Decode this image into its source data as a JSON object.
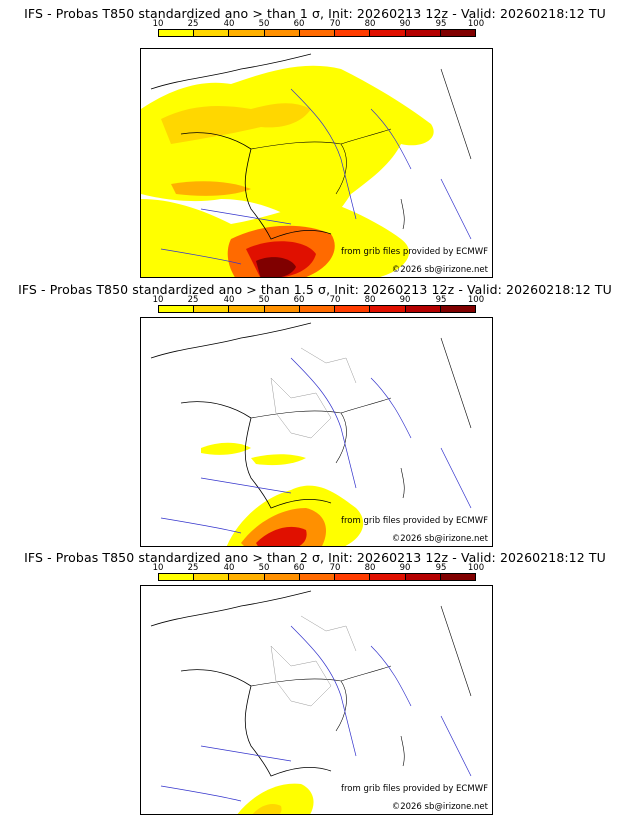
{
  "colorbar": {
    "ticks": [
      "10",
      "25",
      "40",
      "50",
      "60",
      "70",
      "80",
      "90",
      "95",
      "100"
    ],
    "colors": [
      "#ffff00",
      "#ffd700",
      "#ffb000",
      "#ff9000",
      "#ff6a00",
      "#ff3c00",
      "#e01000",
      "#b40000",
      "#800000"
    ]
  },
  "panels": [
    {
      "title": "IFS - Probas T850  standardized ano > than 1 σ, Init: 20260213 12z - Valid: 20260218:12 TU",
      "credit_source": "from grib files provided by ECMWF",
      "credit_copyright": "©2026 sb@irizone.net"
    },
    {
      "title": "IFS - Probas T850  standardized ano > than 1.5 σ, Init: 20260213 12z - Valid: 20260218:12 TU",
      "credit_source": "from grib files provided by ECMWF",
      "credit_copyright": "©2026 sb@irizone.net"
    },
    {
      "title": "IFS - Probas T850  standardized ano > than 2 σ, Init: 20260213 12z - Valid: 20260218:12 TU",
      "credit_source": "from grib files provided by ECMWF",
      "credit_copyright": "©2026 sb@irizone.net"
    }
  ]
}
